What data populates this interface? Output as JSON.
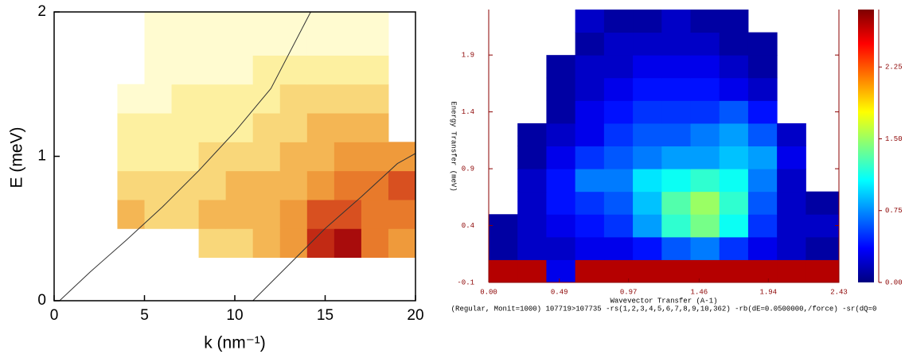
{
  "chart_data": [
    {
      "type": "contour",
      "xlabel": "k (nm⁻¹)",
      "ylabel": "E (meV)",
      "xlim": [
        0,
        20
      ],
      "ylim": [
        0,
        2
      ],
      "xticks": [
        0,
        5,
        10,
        15,
        20
      ],
      "yticks": [
        0,
        1,
        2
      ],
      "x_edges": [
        3.5,
        5,
        6.5,
        8,
        9.5,
        11,
        12.5,
        14,
        15.5,
        17,
        18.5,
        20
      ],
      "y_edges": [
        0.3,
        0.5,
        0.7,
        0.9,
        1.1,
        1.3,
        1.5,
        1.7,
        2.0
      ],
      "z": [
        [
          null,
          null,
          null,
          2,
          2,
          3,
          4,
          7,
          8,
          5,
          4
        ],
        [
          3,
          2,
          2,
          3,
          3,
          3,
          4,
          6,
          6,
          5,
          5
        ],
        [
          2,
          2,
          2,
          2,
          3,
          3,
          3,
          4,
          5,
          5,
          6
        ],
        [
          1,
          1,
          1,
          2,
          2,
          2,
          3,
          3,
          4,
          4,
          4
        ],
        [
          1,
          1,
          1,
          1,
          1,
          2,
          2,
          3,
          3,
          3,
          null
        ],
        [
          0,
          0,
          1,
          1,
          1,
          1,
          2,
          2,
          2,
          2,
          null
        ],
        [
          null,
          0,
          0,
          0,
          0,
          1,
          1,
          1,
          1,
          1,
          null
        ],
        [
          null,
          0,
          0,
          0,
          0,
          0,
          0,
          0,
          0,
          0,
          null
        ]
      ],
      "colors": [
        "#fffbd0",
        "#fdf0a0",
        "#f9d77a",
        "#f4b654",
        "#ef9a3b",
        "#e87a2b",
        "#d85020",
        "#c22a14",
        "#a80c0c"
      ],
      "series": [
        {
          "color": "#333333",
          "x": [
            0.3,
            2,
            4,
            6,
            8,
            10,
            12,
            14.2
          ],
          "y": [
            0,
            0.2,
            0.42,
            0.65,
            0.9,
            1.17,
            1.47,
            2.0
          ]
        },
        {
          "color": "#333333",
          "x": [
            11,
            13,
            15,
            17,
            19,
            20
          ],
          "y": [
            0,
            0.25,
            0.5,
            0.72,
            0.95,
            1.02
          ]
        }
      ]
    },
    {
      "type": "heatmap",
      "xlabel": "Wavevector Transfer (A-1)",
      "ylabel": "Energy Transfer (meV)",
      "footer": "(Regular, Monit=1000) 107719>107735 -rs(1,2,3,4,5,6,7,8,9,10,362) -rb(dE=0.0500000,/force) -sr(dQ=0",
      "xlim": [
        0,
        2.43
      ],
      "ylim": [
        -0.1,
        2.3
      ],
      "xticks": [
        {
          "value": 0,
          "label": "0.00"
        },
        0.49,
        0.97,
        1.46,
        1.94,
        2.43
      ],
      "yticks": [
        -0.1,
        0.4,
        0.9,
        1.4,
        1.9
      ],
      "x_edges": [
        0,
        0.2,
        0.4,
        0.6,
        0.8,
        1.0,
        1.2,
        1.4,
        1.6,
        1.8,
        2.0,
        2.2,
        2.43
      ],
      "y_edges": [
        -0.1,
        0.1,
        0.3,
        0.5,
        0.7,
        0.9,
        1.1,
        1.3,
        1.5,
        1.7,
        1.9,
        2.1,
        2.3
      ],
      "z": [
        [
          2.7,
          2.7,
          0.3,
          2.7,
          2.7,
          2.7,
          2.7,
          2.7,
          2.7,
          2.7,
          2.7,
          2.7
        ],
        [
          0.1,
          0.2,
          0.2,
          0.3,
          0.3,
          0.4,
          0.6,
          0.7,
          0.5,
          0.3,
          0.2,
          0.1
        ],
        [
          0.1,
          0.2,
          0.3,
          0.4,
          0.5,
          0.8,
          1.2,
          1.4,
          1.1,
          0.5,
          0.2,
          0.2
        ],
        [
          null,
          0.2,
          0.4,
          0.5,
          0.6,
          0.9,
          1.3,
          1.5,
          1.2,
          0.6,
          0.2,
          0.1
        ],
        [
          null,
          0.2,
          0.4,
          0.7,
          0.7,
          1.0,
          1.1,
          1.2,
          1.1,
          0.7,
          0.2,
          null
        ],
        [
          null,
          0.1,
          0.3,
          0.5,
          0.6,
          0.7,
          0.8,
          0.8,
          0.9,
          0.8,
          0.3,
          null
        ],
        [
          null,
          0.1,
          0.2,
          0.3,
          0.5,
          0.6,
          0.6,
          0.7,
          0.8,
          0.6,
          0.2,
          null
        ],
        [
          null,
          null,
          0.1,
          0.3,
          0.4,
          0.5,
          0.5,
          0.5,
          0.6,
          0.4,
          null,
          null
        ],
        [
          null,
          null,
          0.1,
          0.2,
          0.3,
          0.4,
          0.4,
          0.4,
          0.3,
          0.2,
          null,
          null
        ],
        [
          null,
          null,
          0.1,
          0.2,
          0.2,
          0.3,
          0.3,
          0.3,
          0.2,
          0.1,
          null,
          null
        ],
        [
          null,
          null,
          null,
          0.1,
          0.2,
          0.2,
          0.2,
          0.2,
          0.1,
          0.1,
          null,
          null
        ],
        [
          null,
          null,
          null,
          0.2,
          0.1,
          0.1,
          0.2,
          0.1,
          0.1,
          null,
          null,
          null
        ]
      ],
      "clim": [
        0,
        2.85
      ],
      "cticks": [
        {
          "value": 0,
          "label": "0.00"
        },
        0.75,
        {
          "value": 1.5,
          "label": "1.50"
        },
        2.25
      ],
      "colorscale": [
        "#00007f",
        "#0000ff",
        "#007fff",
        "#00ffff",
        "#7fff7f",
        "#ffff00",
        "#ff7f00",
        "#ff0000",
        "#7f0000"
      ],
      "axis_color": "#8b0000"
    }
  ]
}
